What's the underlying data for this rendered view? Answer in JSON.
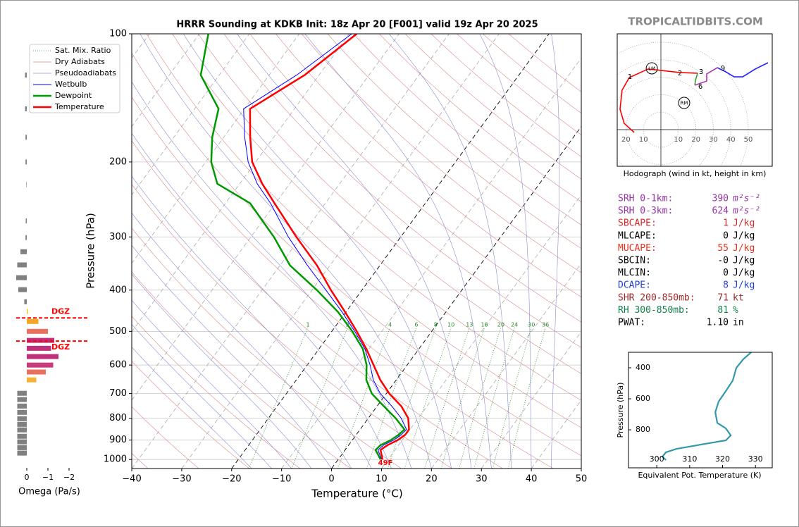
{
  "site": "TROPICALTIDBITS.COM",
  "chart_data": {
    "type": "skewt",
    "title": "HRRR Sounding at KDKB Init: 18z Apr 20 [F001] valid 19z Apr 20 2025",
    "xlabel": "Temperature (°C)",
    "ylabel": "Pressure (hPa)",
    "xlim": [
      -40,
      50
    ],
    "xticks": [
      {
        "value": -40,
        "label": "−40"
      },
      {
        "value": -30,
        "label": "−30"
      },
      {
        "value": -20,
        "label": "−20"
      },
      {
        "value": -10,
        "label": "−10"
      },
      0,
      10,
      20,
      30,
      40,
      50
    ],
    "ylim": [
      1050,
      100
    ],
    "yticks": [
      100,
      200,
      300,
      400,
      500,
      600,
      700,
      800,
      900,
      1000
    ],
    "log_y": true,
    "grid": true,
    "legend": "upper left",
    "pressure": [
      1000,
      950,
      925,
      900,
      875,
      850,
      800,
      750,
      700,
      650,
      600,
      550,
      500,
      450,
      400,
      350,
      300,
      250,
      225,
      200,
      175,
      150,
      125,
      100
    ],
    "series": [
      {
        "name": "Temperature",
        "color": "#ff0000",
        "values": [
          8.9,
          7.1,
          7.8,
          9.1,
          9.8,
          9.8,
          8.0,
          4.9,
          0.6,
          -3.2,
          -6.7,
          -10.5,
          -15.0,
          -20.2,
          -26.2,
          -32.6,
          -40.9,
          -50.2,
          -55.5,
          -60.7,
          -64.7,
          -68.9,
          -62.9,
          -58.5
        ]
      },
      {
        "name": "Dewpoint",
        "color": "#009900",
        "values": [
          8.5,
          6.1,
          6.4,
          7.7,
          8.5,
          8.9,
          5.5,
          1.4,
          -2.9,
          -6.0,
          -8.1,
          -11.2,
          -15.9,
          -21.6,
          -29.0,
          -38.0,
          -45.4,
          -55.1,
          -64.5,
          -68.9,
          -72.3,
          -75.2,
          -83.7,
          -88.2
        ]
      },
      {
        "name": "Wetbulb",
        "color": "#0000ff",
        "values": [
          8.7,
          6.6,
          7.0,
          8.3,
          9.0,
          9.3,
          6.6,
          3.0,
          -1.2,
          -4.6,
          -7.4,
          -10.8,
          -15.4,
          -20.8,
          -27.2,
          -34.5,
          -42.5,
          -51.0,
          -56.5,
          -61.5,
          -65.8,
          -70.2,
          -64.5,
          -59.5
        ]
      }
    ],
    "background_lines": [
      {
        "name": "Sat. Mix. Ratio",
        "color": "#2e8b2e"
      },
      {
        "name": "Dry Adiabats",
        "color": "#d98a8a"
      },
      {
        "name": "Pseudoadiabats",
        "color": "#8c8cd0"
      }
    ],
    "mixing_ratio_labels": [
      1,
      2,
      4,
      6,
      8,
      10,
      13,
      16,
      20,
      24,
      30,
      36
    ],
    "surface_label": "49F"
  },
  "omega": {
    "xlabel": "Omega (Pa/s)",
    "xlim": [
      0.5,
      -2.3
    ],
    "xticks": [
      0,
      {
        "value": -1,
        "label": "−1"
      },
      {
        "value": -2,
        "label": "−2"
      }
    ],
    "pressure": [
      125,
      150,
      175,
      200,
      226,
      275,
      301,
      325,
      349,
      374,
      399,
      426,
      449,
      474,
      500,
      525,
      548,
      573,
      600,
      623,
      650,
      699,
      723,
      749,
      775,
      802,
      827,
      852,
      882,
      909,
      938,
      966
    ],
    "values": [
      0.08,
      0.08,
      0.06,
      0.06,
      0.02,
      0.05,
      0.06,
      0.3,
      0.45,
      0.5,
      0.4,
      0.12,
      -0.06,
      -0.55,
      -1.0,
      -1.3,
      -1.15,
      -1.5,
      -1.25,
      -0.9,
      -0.45,
      0.45,
      0.45,
      0.45,
      0.45,
      0.45,
      0.45,
      0.45,
      0.45,
      0.45,
      0.45,
      0.45
    ],
    "colors": [
      "#808080",
      "#808080",
      "#808080",
      "#808080",
      "#808080",
      "#808080",
      "#808080",
      "#808080",
      "#808080",
      "#808080",
      "#808080",
      "#808080",
      "#ffcc33",
      "#f5a623",
      "#e8705f",
      "#c0307a",
      "#c0307a",
      "#c0307a",
      "#c83a7a",
      "#e8705f",
      "#f7b234",
      "#808080",
      "#808080",
      "#808080",
      "#808080",
      "#808080",
      "#808080",
      "#808080",
      "#808080",
      "#808080",
      "#808080",
      "#808080"
    ],
    "dgz_label": "DGZ",
    "dgz_pressure": [
      465,
      527
    ]
  },
  "hodograph": {
    "caption": "Hodograph (wind in kt, height in km)",
    "rings": [
      10,
      20,
      30,
      40,
      50
    ],
    "segments": [
      {
        "color": "#ff0000",
        "u": [
          -15.3,
          -21.0,
          -23.4,
          -22.2,
          -18.1,
          -7.3,
          10.9,
          21.0
        ],
        "v": [
          -1.6,
          3.6,
          11.7,
          22.6,
          29.8,
          34.7,
          32.7,
          32.3
        ]
      },
      {
        "color": "#33a02c",
        "u": [
          21.0,
          19.8,
          19.4
        ],
        "v": [
          32.3,
          28.2,
          25.4
        ]
      },
      {
        "color": "#b030b0",
        "u": [
          19.4,
          26.2,
          26.2,
          32.3
        ],
        "v": [
          25.4,
          27.8,
          31.9,
          35.5
        ]
      },
      {
        "color": "#1f1fff",
        "u": [
          32.3,
          37.1,
          41.9,
          46.8,
          54.0,
          61.3
        ],
        "v": [
          35.5,
          33.1,
          30.2,
          30.2,
          34.7,
          38.3
        ]
      }
    ],
    "heights": [
      1,
      2,
      3,
      6,
      9
    ],
    "height_u": [
      -17.7,
      10.9,
      23.0,
      22.6,
      35.5
    ],
    "height_v": [
      30.2,
      32.3,
      33.1,
      24.6,
      35.1
    ],
    "storm_motion": [
      {
        "label": "LM",
        "u": -5.2,
        "v": 35.1
      },
      {
        "label": "RM",
        "u": 13.3,
        "v": 15.3
      }
    ]
  },
  "parameters": [
    {
      "label": "SRH 0-1km:",
      "value": 390,
      "unit": "m²s⁻²",
      "color": "#9932a8"
    },
    {
      "label": "SRH 0-3km:",
      "value": 624,
      "unit": "m²s⁻²",
      "color": "#9932a8"
    },
    {
      "label": "SBCAPE:",
      "value": 1,
      "unit": "J/kg",
      "color": "#d62728"
    },
    {
      "label": "MLCAPE:",
      "value": 0,
      "unit": "J/kg",
      "color": "#000000"
    },
    {
      "label": "MUCAPE:",
      "value": 55,
      "unit": "J/kg",
      "color": "#e8301e"
    },
    {
      "label": "SBCIN:",
      "value": 0,
      "value_label": "-0",
      "unit": "J/kg",
      "color": "#000000"
    },
    {
      "label": "MLCIN:",
      "value": 0,
      "unit": "J/kg",
      "color": "#000000"
    },
    {
      "label": "DCAPE:",
      "value": 8,
      "unit": "J/kg",
      "color": "#1f3fd0"
    },
    {
      "label": "SHR 200-850mb:",
      "value": 71,
      "unit": "kt",
      "color": "#a0282a"
    },
    {
      "label": "RH 300-850mb:",
      "value": 81,
      "unit": "%",
      "color": "#108048"
    },
    {
      "label": "PWAT:",
      "value": 1.1,
      "value_label": "1.10",
      "unit": "in",
      "color": "#000000"
    }
  ],
  "theta_e": {
    "xlabel": "Equivalent Pot. Temperature (K)",
    "ylabel": "Pressure (hPa)",
    "xlim": [
      291.4,
      335.1
    ],
    "xticks": [
      300,
      310,
      320,
      330
    ],
    "ylim": [
      1045,
      300
    ],
    "yticks": [
      400,
      600,
      800
    ],
    "color": "#3399aa",
    "pressure": [
      300,
      345,
      400,
      482,
      550,
      618,
      686,
      755,
      791,
      836,
      868,
      891,
      923,
      945,
      973,
      995
    ],
    "values": [
      328.7,
      326.3,
      324.2,
      323.1,
      321.0,
      318.8,
      317.8,
      318.4,
      321.0,
      322.5,
      321.0,
      314.6,
      306.0,
      302.8,
      301.7,
      302.8
    ]
  }
}
